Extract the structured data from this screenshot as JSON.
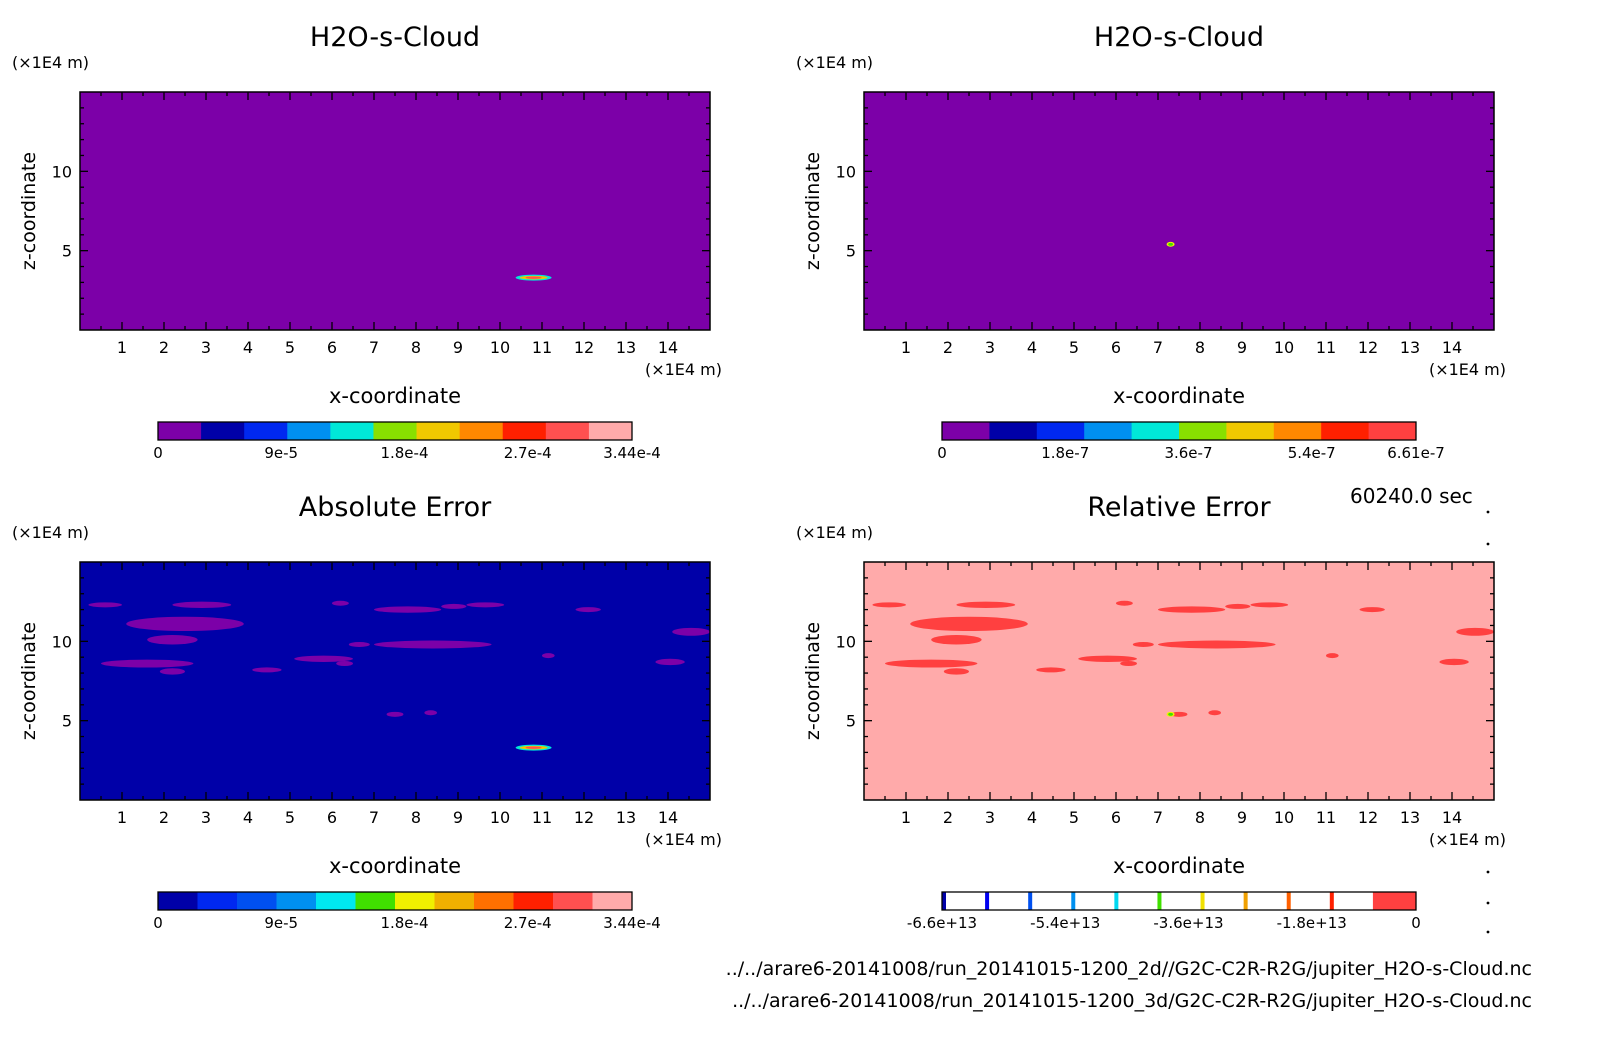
{
  "time_label": "60240.0 sec",
  "file_paths": [
    "../../arare6-20141008/run_20141015-1200_2d//G2C-C2R-R2G/jupiter_H2O-s-Cloud.nc",
    "../../arare6-20141008/run_20141015-1200_3d/G2C-C2R-R2G/jupiter_H2O-s-Cloud.nc"
  ],
  "colors": {
    "purple": "#7c00a8",
    "navy": "#0000a8",
    "salmon": "#ffaaaa",
    "red": "#ff4040"
  },
  "chart_data": [
    {
      "type": "heatmap",
      "title": "H2O-s-Cloud",
      "xlabel": "x-coordinate",
      "ylabel": "z-coordinate",
      "x_unit": "(×1E4 m)",
      "y_unit": "(×1E4 m)",
      "xlim": [
        0,
        15
      ],
      "ylim": [
        0,
        15
      ],
      "xticks": [
        "1",
        "2",
        "3",
        "4",
        "5",
        "6",
        "7",
        "8",
        "9",
        "10",
        "11",
        "12",
        "13",
        "14"
      ],
      "yticks": [
        "5",
        "10"
      ],
      "background_level": 0,
      "features": [
        {
          "x": 10.8,
          "z": 3.3,
          "value": 0.000344
        }
      ],
      "colorbar": {
        "labels": [
          "0",
          "9e-5",
          "1.8e-4",
          "2.7e-4",
          "3.44e-4"
        ],
        "colors": [
          "#7c00a8",
          "#0000a8",
          "#0028f0",
          "#0090f0",
          "#00e8d8",
          "#88e000",
          "#f0c800",
          "#ff8800",
          "#ff2000",
          "#ff5050",
          "#ffaaaa"
        ]
      }
    },
    {
      "type": "heatmap",
      "title": "H2O-s-Cloud",
      "xlabel": "x-coordinate",
      "ylabel": "z-coordinate",
      "x_unit": "(×1E4 m)",
      "y_unit": "(×1E4 m)",
      "xlim": [
        0,
        15
      ],
      "ylim": [
        0,
        15
      ],
      "xticks": [
        "1",
        "2",
        "3",
        "4",
        "5",
        "6",
        "7",
        "8",
        "9",
        "10",
        "11",
        "12",
        "13",
        "14"
      ],
      "yticks": [
        "5",
        "10"
      ],
      "background_level": 0,
      "features": [
        {
          "x": 7.3,
          "z": 5.4,
          "value": 6.61e-07
        }
      ],
      "colorbar": {
        "labels": [
          "0",
          "1.8e-7",
          "3.6e-7",
          "5.4e-7",
          "6.61e-7"
        ],
        "colors": [
          "#7c00a8",
          "#0000a8",
          "#0028f0",
          "#0090f0",
          "#00e8d8",
          "#88e000",
          "#f0c800",
          "#ff8800",
          "#ff2000",
          "#ff4040"
        ]
      }
    },
    {
      "type": "heatmap",
      "title": "Absolute Error",
      "xlabel": "x-coordinate",
      "ylabel": "z-coordinate",
      "x_unit": "(×1E4 m)",
      "y_unit": "(×1E4 m)",
      "xlim": [
        0,
        15
      ],
      "ylim": [
        0,
        15
      ],
      "xticks": [
        "1",
        "2",
        "3",
        "4",
        "5",
        "6",
        "7",
        "8",
        "9",
        "10",
        "11",
        "12",
        "13",
        "14"
      ],
      "yticks": [
        "5",
        "10"
      ],
      "background_level": 1,
      "features": [
        {
          "x": 10.8,
          "z": 3.3,
          "value": 0.000344
        }
      ],
      "patches": [
        [
          0.2,
          12.3,
          0.8,
          0.3
        ],
        [
          2.2,
          12.3,
          1.4,
          0.4
        ],
        [
          1.1,
          11.1,
          2.8,
          0.9
        ],
        [
          1.6,
          10.1,
          1.2,
          0.6
        ],
        [
          0.5,
          8.6,
          2.2,
          0.5
        ],
        [
          1.9,
          8.1,
          0.6,
          0.4
        ],
        [
          4.1,
          8.2,
          0.7,
          0.3
        ],
        [
          5.1,
          8.9,
          1.4,
          0.4
        ],
        [
          6.1,
          8.6,
          0.4,
          0.3
        ],
        [
          7.0,
          9.8,
          2.8,
          0.5
        ],
        [
          6.4,
          9.8,
          0.5,
          0.3
        ],
        [
          7.0,
          12.0,
          1.6,
          0.4
        ],
        [
          8.6,
          12.2,
          0.6,
          0.3
        ],
        [
          9.2,
          12.3,
          0.9,
          0.3
        ],
        [
          11.8,
          12.0,
          0.6,
          0.3
        ],
        [
          11.0,
          9.1,
          0.3,
          0.2
        ],
        [
          13.7,
          8.7,
          0.7,
          0.4
        ],
        [
          14.1,
          10.6,
          0.9,
          0.5
        ],
        [
          6.0,
          12.4,
          0.4,
          0.3
        ],
        [
          7.3,
          5.4,
          0.4,
          0.3
        ],
        [
          8.2,
          5.5,
          0.3,
          0.3
        ]
      ],
      "colorbar": {
        "labels": [
          "0",
          "9e-5",
          "1.8e-4",
          "2.7e-4",
          "3.44e-4"
        ],
        "colors": [
          "#0000a8",
          "#0028f0",
          "#0050f0",
          "#0090f0",
          "#00e8f0",
          "#40e000",
          "#f0f000",
          "#f0b000",
          "#ff7000",
          "#ff2000",
          "#ff5050",
          "#ffaaaa"
        ]
      }
    },
    {
      "type": "heatmap",
      "title": "Relative Error",
      "xlabel": "x-coordinate",
      "ylabel": "z-coordinate",
      "x_unit": "(×1E4 m)",
      "y_unit": "(×1E4 m)",
      "xlim": [
        0,
        15
      ],
      "ylim": [
        0,
        15
      ],
      "xticks": [
        "1",
        "2",
        "3",
        "4",
        "5",
        "6",
        "7",
        "8",
        "9",
        "10",
        "11",
        "12",
        "13",
        "14"
      ],
      "yticks": [
        "5",
        "10"
      ],
      "background_level": 0,
      "features": [
        {
          "x": 7.3,
          "z": 5.4,
          "value": -66000000000000.0
        }
      ],
      "patches": [
        [
          0.2,
          12.3,
          0.8,
          0.3
        ],
        [
          2.2,
          12.3,
          1.4,
          0.4
        ],
        [
          1.1,
          11.1,
          2.8,
          0.9
        ],
        [
          1.6,
          10.1,
          1.2,
          0.6
        ],
        [
          0.5,
          8.6,
          2.2,
          0.5
        ],
        [
          1.9,
          8.1,
          0.6,
          0.4
        ],
        [
          4.1,
          8.2,
          0.7,
          0.3
        ],
        [
          5.1,
          8.9,
          1.4,
          0.4
        ],
        [
          6.1,
          8.6,
          0.4,
          0.3
        ],
        [
          7.0,
          9.8,
          2.8,
          0.5
        ],
        [
          6.4,
          9.8,
          0.5,
          0.3
        ],
        [
          7.0,
          12.0,
          1.6,
          0.4
        ],
        [
          8.6,
          12.2,
          0.6,
          0.3
        ],
        [
          9.2,
          12.3,
          0.9,
          0.3
        ],
        [
          11.8,
          12.0,
          0.6,
          0.3
        ],
        [
          11.0,
          9.1,
          0.3,
          0.2
        ],
        [
          13.7,
          8.7,
          0.7,
          0.4
        ],
        [
          14.1,
          10.6,
          0.9,
          0.5
        ],
        [
          6.0,
          12.4,
          0.4,
          0.3
        ],
        [
          7.3,
          5.4,
          0.4,
          0.3
        ],
        [
          8.2,
          5.5,
          0.3,
          0.3
        ]
      ],
      "colorbar": {
        "labels": [
          "-6.6e+13",
          "-5.4e+13",
          "-3.6e+13",
          "-1.8e+13",
          "0"
        ],
        "colors": [
          "#ffffff",
          "#ffffff",
          "#ffffff",
          "#ffffff",
          "#ffffff",
          "#ffffff",
          "#ffffff",
          "#ffffff",
          "#ffffff",
          "#ffffff",
          "#ff4040"
        ],
        "tick_colors": [
          "#0000a8",
          "#0000f0",
          "#0050f0",
          "#0090f0",
          "#00d8f0",
          "#40e000",
          "#f0e000",
          "#f0a000",
          "#ff6000",
          "#ff2000"
        ]
      }
    }
  ]
}
